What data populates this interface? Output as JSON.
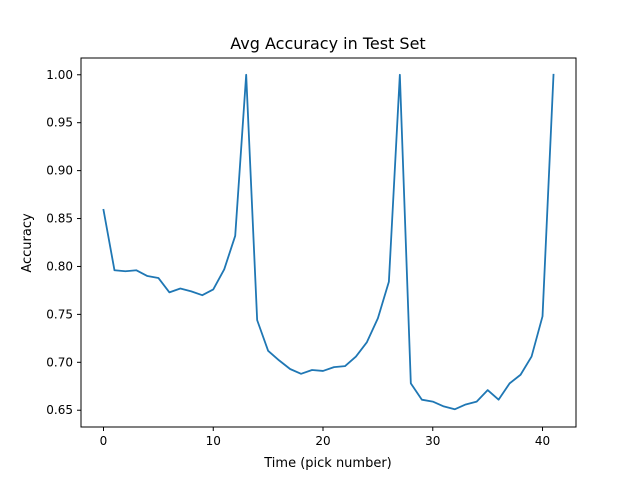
{
  "chart_data": {
    "type": "line",
    "title": "Avg Accuracy in Test Set",
    "xlabel": "Time (pick number)",
    "ylabel": "Accuracy",
    "xlim": [
      -2.05,
      43.05
    ],
    "ylim": [
      0.6325,
      1.0175
    ],
    "xticks": [
      0,
      10,
      20,
      30,
      40
    ],
    "yticks": [
      0.65,
      0.7,
      0.75,
      0.8,
      0.85,
      0.9,
      0.95,
      1.0
    ],
    "ytick_labels": [
      "0.65",
      "0.70",
      "0.75",
      "0.80",
      "0.85",
      "0.90",
      "0.95",
      "1.00"
    ],
    "grid": false,
    "line_color": "#1f77b4",
    "series": [
      {
        "x": [
          0,
          1,
          2,
          3,
          4,
          5,
          6,
          7,
          8,
          9,
          10,
          11,
          12,
          13,
          14,
          15,
          16,
          17,
          18,
          19,
          20,
          21,
          22,
          23,
          24,
          25,
          26,
          27,
          28,
          29,
          30,
          31,
          32,
          33,
          34,
          35,
          36,
          37,
          38,
          39,
          40,
          41
        ],
        "values": [
          0.859,
          0.796,
          0.795,
          0.796,
          0.79,
          0.788,
          0.773,
          0.777,
          0.774,
          0.77,
          0.776,
          0.797,
          0.832,
          1.0,
          0.744,
          0.712,
          0.702,
          0.693,
          0.688,
          0.692,
          0.691,
          0.695,
          0.696,
          0.706,
          0.721,
          0.746,
          0.784,
          1.0,
          0.678,
          0.661,
          0.659,
          0.654,
          0.651,
          0.656,
          0.659,
          0.671,
          0.661,
          0.678,
          0.687,
          0.706,
          0.748,
          1.0
        ]
      }
    ]
  }
}
